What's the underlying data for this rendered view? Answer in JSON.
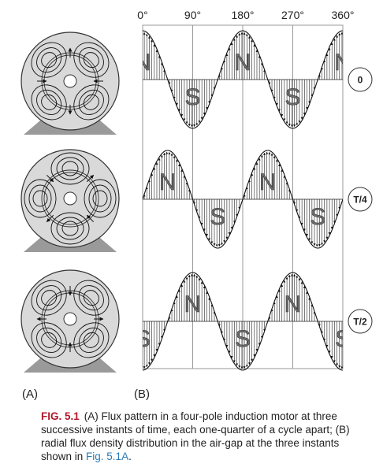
{
  "degree_labels": [
    "0°",
    "90°",
    "180°",
    "270°",
    "360°"
  ],
  "time_labels": [
    "0",
    "T/4",
    "T/2"
  ],
  "pole_letters": {
    "north": "N",
    "south": "S"
  },
  "panel_labels": {
    "a": "(A)",
    "b": "(B)"
  },
  "caption": {
    "label": "FIG. 5.1",
    "text": "(A) Flux pattern in a four-pole induction motor at three successive instants of time, each one-quarter of a cycle apart; (B) radial flux density distribution in the air-gap at the three instants shown in ",
    "ref": "Fig. 5.1A",
    "end": "."
  },
  "colors": {
    "disc_fill": "#d9d9d9",
    "base_fill": "#9a9a9a",
    "pole_letter": "#6f6f6f",
    "grid": "#999999",
    "caption_label": "#b0182b",
    "caption_ref": "#2a7ab8"
  }
}
